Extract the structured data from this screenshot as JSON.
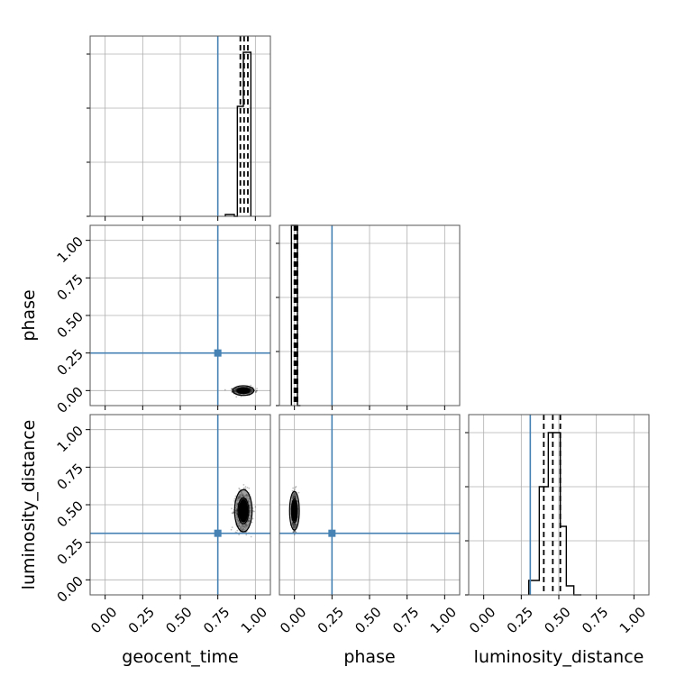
{
  "chart_data": {
    "type": "corner",
    "parameters": [
      "geocent_time",
      "phase",
      "luminosity_distance"
    ],
    "axis_range": [
      -0.1,
      1.1
    ],
    "tick_values": [
      0,
      0.25,
      0.5,
      0.75,
      1.0
    ],
    "tick_labels": [
      "0.00",
      "0.25",
      "0.50",
      "0.75",
      "1.00"
    ],
    "grid": true,
    "truths": {
      "geocent_time": 0.75,
      "phase": 0.25,
      "luminosity_distance": 0.31
    },
    "colors": {
      "truth": "#4682b4",
      "histogram": "#000000"
    },
    "marginals": [
      {
        "parameter": "geocent_time",
        "bin_edges": [
          0.8,
          0.86,
          0.88,
          0.89,
          0.9,
          0.91,
          0.92,
          0.93,
          0.94,
          0.95,
          0.97
        ],
        "counts": [
          0.01,
          0.0,
          0.61,
          0.61,
          0.61,
          0.61,
          0.91,
          0.91,
          0.91,
          0.91
        ],
        "quantiles": [
          0.9,
          0.925,
          0.95
        ]
      },
      {
        "parameter": "phase",
        "bin_edges": [
          -0.02,
          0.0,
          0.02,
          0.04
        ],
        "counts": [
          1.0,
          1.0,
          0.0
        ],
        "quantiles": [
          0.0,
          0.01,
          0.02
        ]
      },
      {
        "parameter": "luminosity_distance",
        "bin_edges": [
          0.3,
          0.37,
          0.39,
          0.43,
          0.46,
          0.49,
          0.51,
          0.55,
          0.6,
          0.65
        ],
        "counts": [
          0.08,
          0.6,
          0.6,
          0.9,
          0.9,
          0.9,
          0.38,
          0.05,
          0.0
        ],
        "quantiles": [
          0.4,
          0.46,
          0.51
        ]
      }
    ],
    "joint": [
      {
        "x": "geocent_time",
        "y": "phase",
        "center": [
          0.92,
          0.0
        ],
        "spread": [
          0.03,
          0.01
        ]
      },
      {
        "x": "geocent_time",
        "y": "luminosity_distance",
        "center": [
          0.92,
          0.46
        ],
        "spread": [
          0.025,
          0.06
        ]
      },
      {
        "x": "phase",
        "y": "luminosity_distance",
        "center": [
          0.0,
          0.46
        ],
        "spread": [
          0.008,
          0.055
        ]
      }
    ]
  }
}
